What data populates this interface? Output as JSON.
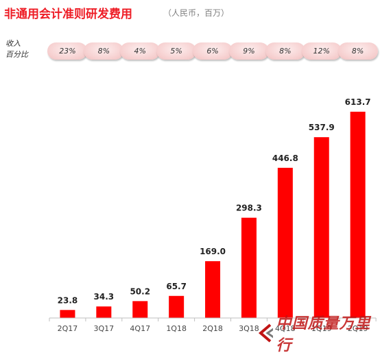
{
  "header": {
    "title": "非通用会计准则研发费用",
    "unit": "（人民币，百万）"
  },
  "revenue_pct": {
    "label": "收入\n百分比",
    "values": [
      "23%",
      "8%",
      "4%",
      "5%",
      "6%",
      "9%",
      "8%",
      "12%",
      "8%"
    ]
  },
  "chart_data": {
    "type": "bar",
    "title": "非通用会计准则研发费用",
    "unit": "（人民币，百万）",
    "categories": [
      "2Q17",
      "3Q17",
      "4Q17",
      "1Q18",
      "2Q18",
      "3Q18",
      "4Q18",
      "1Q19",
      "2Q19"
    ],
    "values": [
      23.8,
      34.3,
      50.2,
      65.7,
      169.0,
      298.3,
      446.8,
      537.9,
      613.7
    ],
    "value_labels": [
      "23.8",
      "34.3",
      "50.2",
      "65.7",
      "169.0",
      "298.3",
      "446.8",
      "537.9",
      "613.7"
    ],
    "ylim": [
      0,
      613.7
    ],
    "grid": false,
    "bar_color": "#ff0000"
  },
  "watermark": {
    "text": "中国质量万里行",
    "color": "#c01414"
  }
}
